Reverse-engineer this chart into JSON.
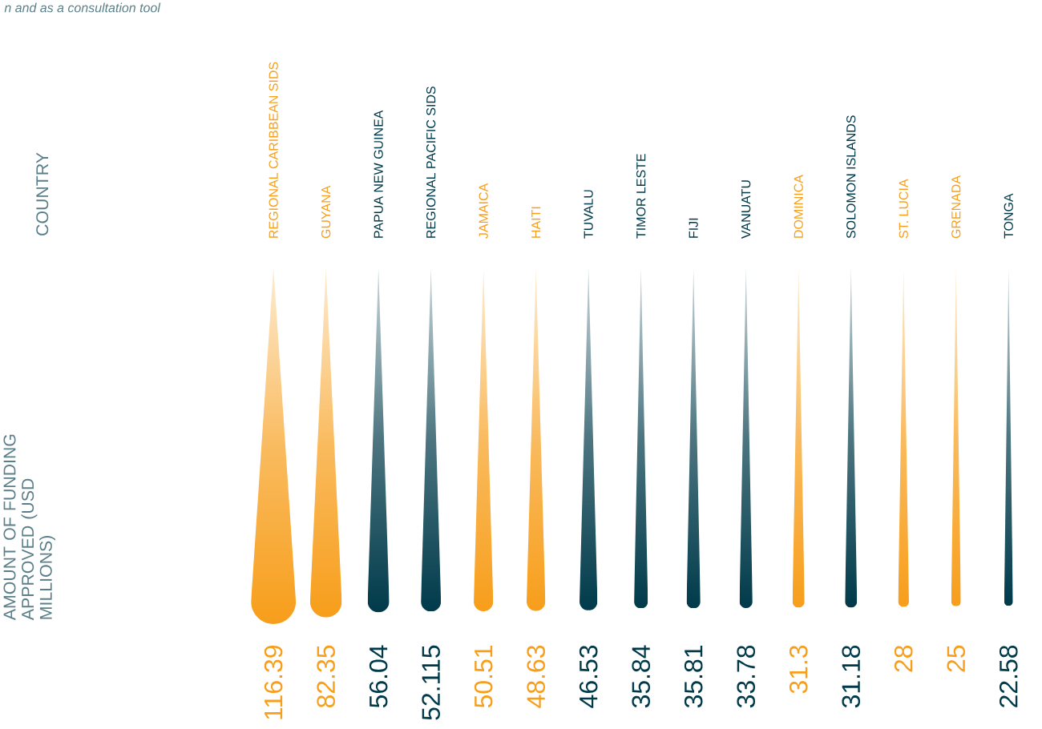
{
  "chart_data": {
    "type": "other",
    "xlabel": "COUNTRY",
    "ylabel": "AMOUNT OF FUNDING APPROVED (USD MILLIONS)",
    "annotations": [
      "n and as a consultation tool"
    ],
    "categories": [
      "REGIONAL CARIBBEAN SIDS",
      "GUYANA",
      "PAPUA NEW GUINEA",
      "REGIONAL PACIFIC SIDS",
      "JAMAICA",
      "HAITI",
      "TUVALU",
      "TIMOR LESTE",
      "FIJI",
      "VANUATU",
      "DOMINICA",
      "SOLOMON ISLANDS",
      "ST. LUCIA",
      "GRENADA",
      "TONGA"
    ],
    "values": [
      116.39,
      82.35,
      56.04,
      52.115,
      50.51,
      48.63,
      46.53,
      35.84,
      35.81,
      33.78,
      31.3,
      31.18,
      28,
      25,
      22.58
    ],
    "colors": [
      "#f79e1b",
      "#f79e1b",
      "#003a4a",
      "#003a4a",
      "#f79e1b",
      "#f79e1b",
      "#003a4a",
      "#003a4a",
      "#003a4a",
      "#003a4a",
      "#f79e1b",
      "#003a4a",
      "#f79e1b",
      "#f79e1b",
      "#003a4a"
    ],
    "data_labels": true
  }
}
